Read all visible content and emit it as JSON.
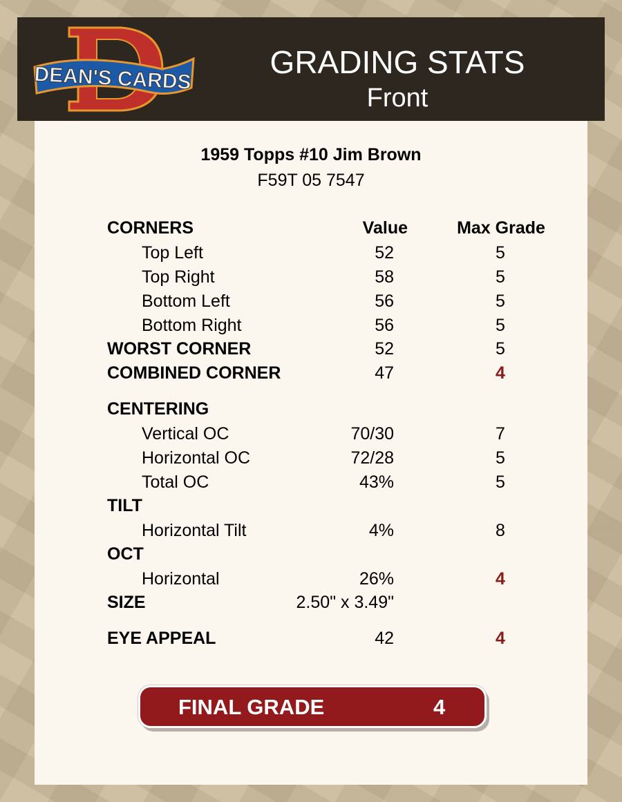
{
  "header": {
    "logo_text": "DEAN'S CARDS",
    "title": "GRADING STATS",
    "subtitle": "Front"
  },
  "card": {
    "name": "1959 Topps #10 Jim Brown",
    "cert": "F59T 05 7547"
  },
  "columns": {
    "value": "Value",
    "max": "Max Grade"
  },
  "rows": [
    {
      "label": "CORNERS",
      "kind": "hdr"
    },
    {
      "label": "Top Left",
      "kind": "sub",
      "value": "52",
      "max": "5"
    },
    {
      "label": "Top Right",
      "kind": "sub",
      "value": "58",
      "max": "5"
    },
    {
      "label": "Bottom Left",
      "kind": "sub",
      "value": "56",
      "max": "5"
    },
    {
      "label": "Bottom Right",
      "kind": "sub",
      "value": "56",
      "max": "5"
    },
    {
      "label": "WORST CORNER",
      "kind": "sec",
      "value": "52",
      "max": "5"
    },
    {
      "label": "COMBINED CORNER",
      "kind": "sec",
      "value": "47",
      "max": "4",
      "highlight": true
    },
    {
      "label": "CENTERING",
      "kind": "sec"
    },
    {
      "label": "Vertical OC",
      "kind": "sub",
      "value": "70/30",
      "max": "7"
    },
    {
      "label": "Horizontal OC",
      "kind": "sub",
      "value": "72/28",
      "max": "5"
    },
    {
      "label": "Total OC",
      "kind": "sub",
      "value": "43%",
      "max": "5"
    },
    {
      "label": "TILT",
      "kind": "sec"
    },
    {
      "label": "Horizontal Tilt",
      "kind": "sub",
      "value": "4%",
      "max": "8"
    },
    {
      "label": "OCT",
      "kind": "sec"
    },
    {
      "label": "Horizontal",
      "kind": "sub",
      "value": "26%",
      "max": "4",
      "highlight": true
    },
    {
      "label": "SIZE",
      "kind": "sec",
      "value": "2.50\" x 3.49\""
    },
    {
      "label": "EYE APPEAL",
      "kind": "sec",
      "value": "42",
      "max": "4",
      "highlight": true
    }
  ],
  "final": {
    "label": "FINAL GRADE",
    "grade": "4"
  },
  "colors": {
    "header_bg": "#2e2720",
    "panel_bg": "#fcf7ee",
    "accent_red": "#921a1c"
  }
}
